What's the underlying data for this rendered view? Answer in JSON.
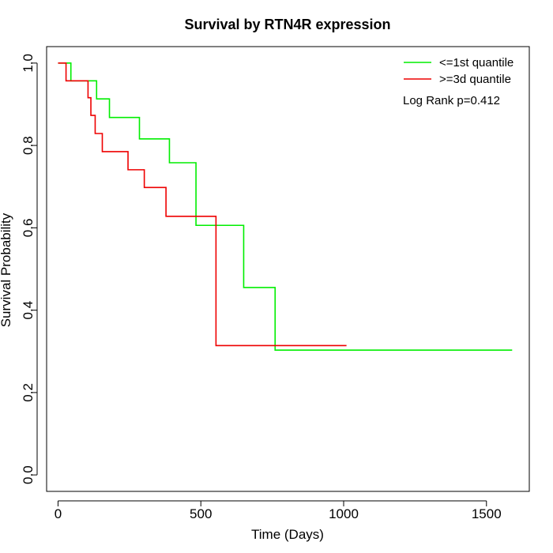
{
  "chart_data": {
    "type": "line",
    "title": "Survival by RTN4R expression",
    "xlabel": "Time (Days)",
    "ylabel": "Survival Probability",
    "xlim": [
      -40,
      1650
    ],
    "ylim": [
      -0.04,
      1.04
    ],
    "x_ticks": [
      0,
      500,
      1000,
      1500
    ],
    "y_ticks": [
      0.0,
      0.2,
      0.4,
      0.6,
      0.8,
      1.0
    ],
    "x_tick_labels": [
      "0",
      "500",
      "1000",
      "1500"
    ],
    "y_tick_labels": [
      "0.0",
      "0.2",
      "0.4",
      "0.6",
      "0.8",
      "1.0"
    ],
    "grid": false,
    "legend_position": "top-right",
    "annotation": "Log Rank p=0.412",
    "series": [
      {
        "name": "<=1st quantile",
        "color": "#00ee00",
        "steps": [
          [
            0,
            1.0
          ],
          [
            45,
            0.957
          ],
          [
            135,
            0.913
          ],
          [
            180,
            0.868
          ],
          [
            285,
            0.816
          ],
          [
            390,
            0.758
          ],
          [
            483,
            0.606
          ],
          [
            650,
            0.455
          ],
          [
            760,
            0.303
          ],
          [
            1590,
            0.303
          ]
        ]
      },
      {
        "name": ">=3d quantile",
        "color": "#ee0000",
        "steps": [
          [
            0,
            1.0
          ],
          [
            28,
            0.957
          ],
          [
            105,
            0.916
          ],
          [
            115,
            0.873
          ],
          [
            130,
            0.829
          ],
          [
            155,
            0.785
          ],
          [
            245,
            0.741
          ],
          [
            302,
            0.698
          ],
          [
            378,
            0.628
          ],
          [
            553,
            0.314
          ],
          [
            1010,
            0.314
          ]
        ]
      }
    ]
  }
}
